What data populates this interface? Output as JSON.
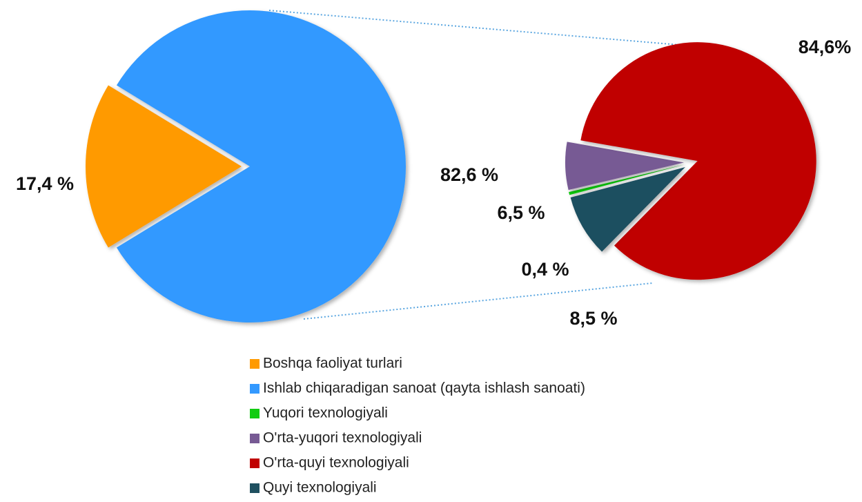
{
  "chart_data": [
    {
      "type": "pie",
      "categories": [
        "Boshqa faoliyat turlari",
        "Ishlab chiqaradigan sanoat (qayta ishlash sanoati)"
      ],
      "values": [
        17.4,
        82.6
      ],
      "value_labels": [
        "17,4 %",
        "82,6 %"
      ],
      "colors": [
        "#ff9a00",
        "#3399ff"
      ]
    },
    {
      "type": "pie",
      "categories": [
        "Yuqori texnologiyali",
        "O'rta-yuqori texnologiyali",
        "O'rta-quyi texnologiyali",
        "Quyi texnologiyali"
      ],
      "values": [
        0.4,
        6.5,
        84.6,
        8.5
      ],
      "value_labels": [
        "0,4 %",
        "6,5 %",
        "84,6%",
        "8,5 %"
      ],
      "colors": [
        "#11cc11",
        "#775a94",
        "#c00000",
        "#1f5060"
      ]
    }
  ]
}
